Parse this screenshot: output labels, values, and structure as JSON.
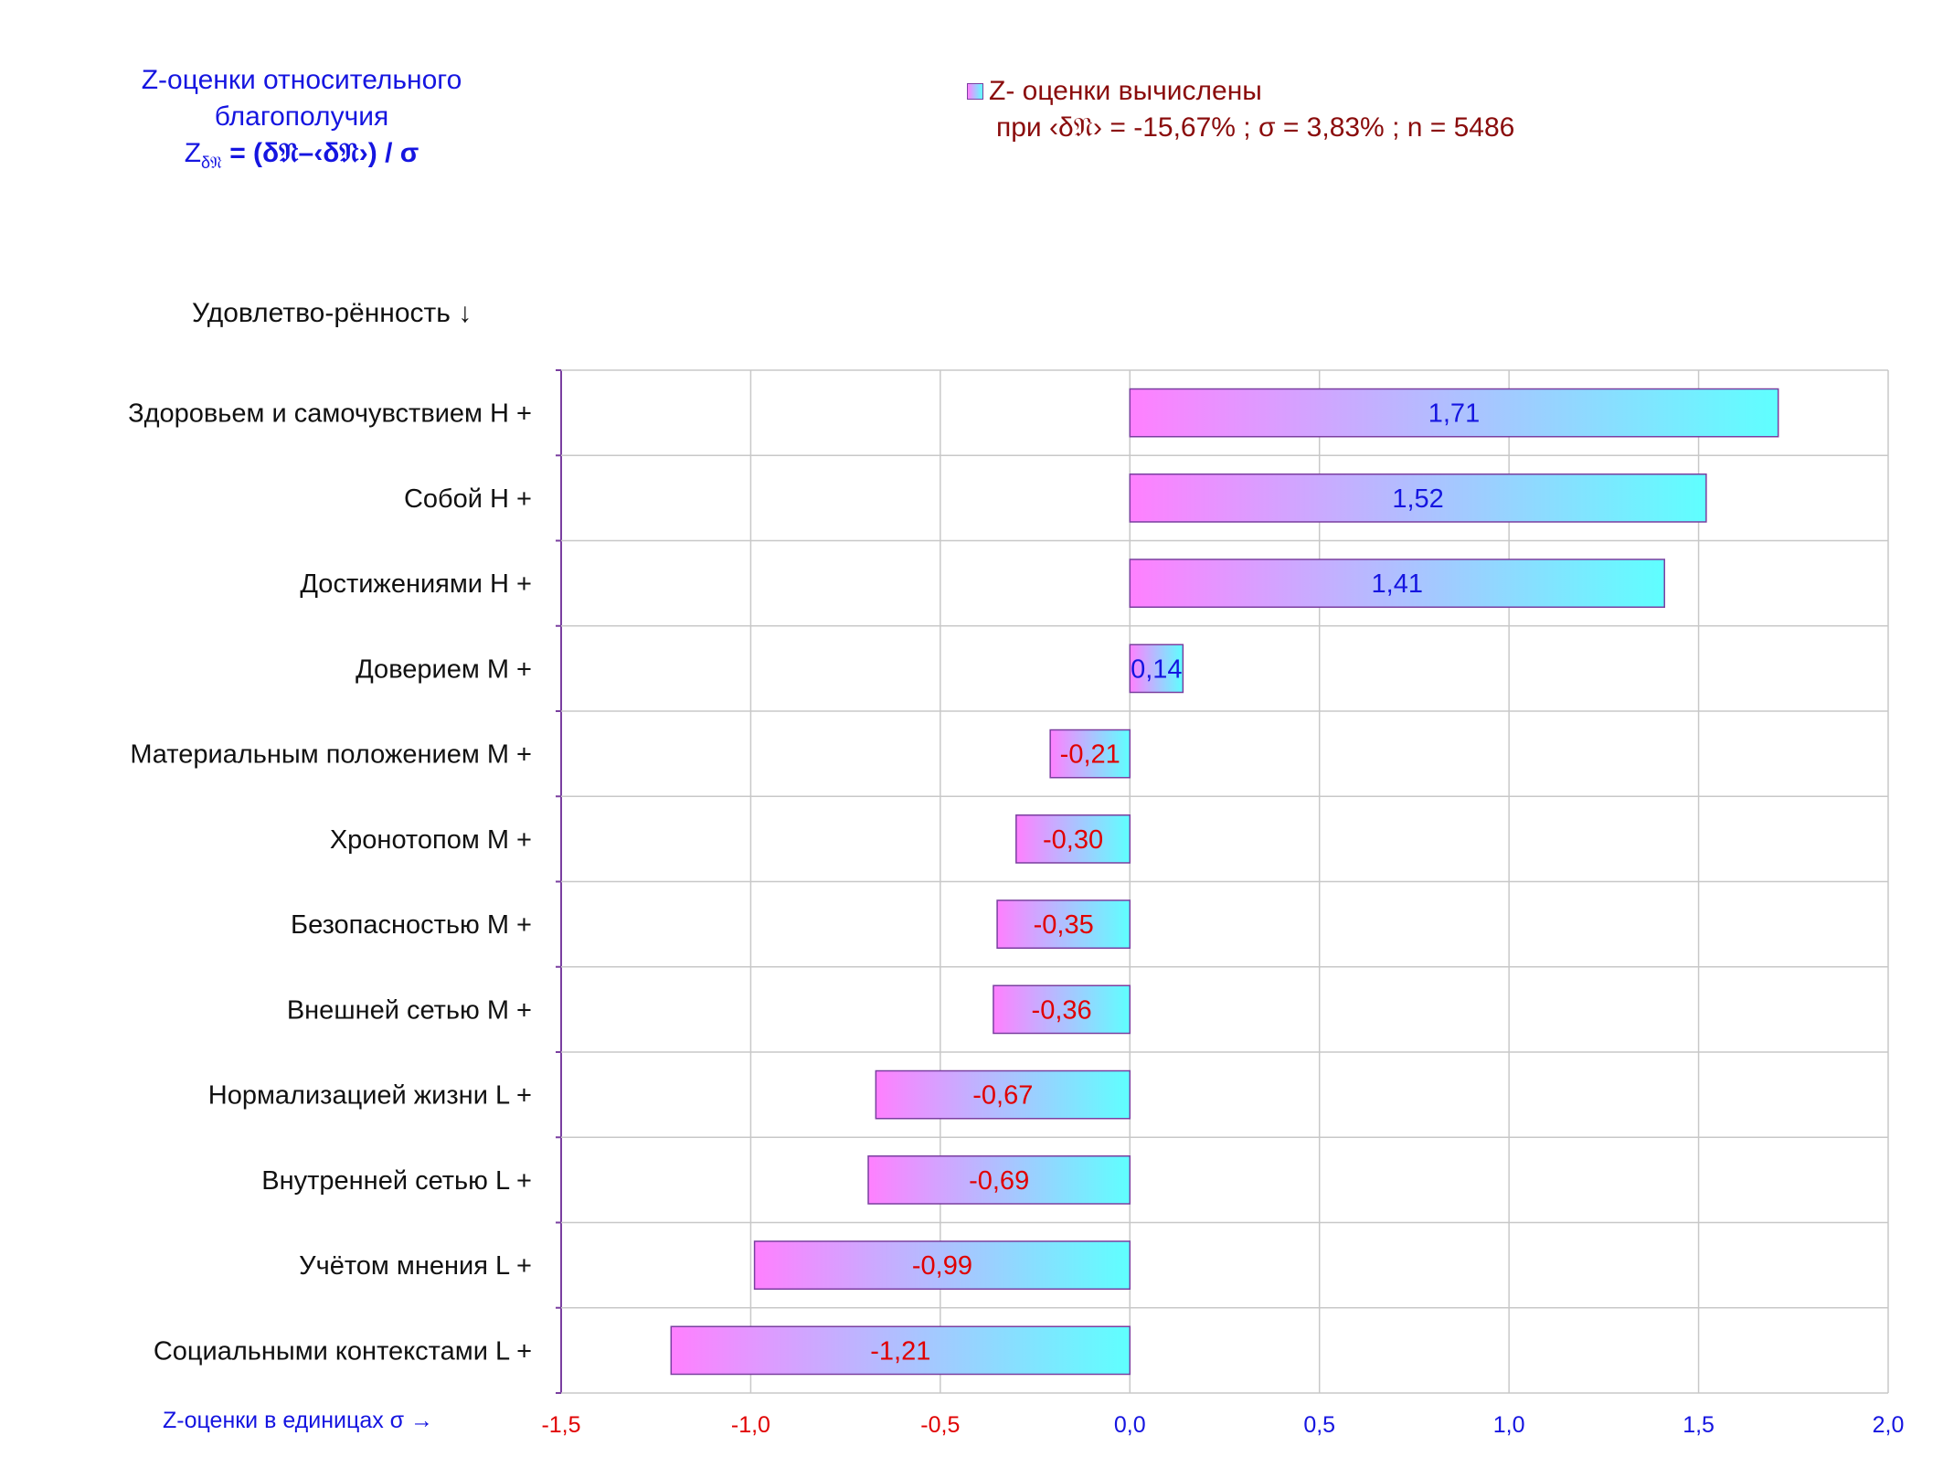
{
  "header": {
    "title_line1": "Z-оценки  относительного",
    "title_line2": "благополучия",
    "formula_main": "Z",
    "formula_sub": "δ𝔑",
    "formula_rest": " = (δ𝔑–‹δ𝔑›)  / σ"
  },
  "legend": {
    "line1": "Z- оценки вычислены",
    "line2": "при ‹δ𝔑›  = -15,67% ; σ = 3,83% ; n = 5486"
  },
  "axis_titles": {
    "y_top": "Удовлетво-рённость ↓",
    "x_bottom": "Z-оценки в единицах σ →"
  },
  "colors": {
    "bar_gradient_start": "#ff80ff",
    "bar_gradient_end": "#5fffff",
    "bar_border": "#7a3fa0",
    "positive_label": "#1515e0",
    "negative_label": "#e00000",
    "grid": "#c8c8c8",
    "axis": "#7a3fa0"
  },
  "chart_data": {
    "type": "bar",
    "orientation": "horizontal",
    "categories": [
      "Здоровьем и самочувствием  H +",
      "Собой  H +",
      "Достижениями  H +",
      "Доверием  M +",
      "Материальным положением  M +",
      "Хронотопом  M +",
      "Безопасностью  M +",
      "Внешней сетью  M +",
      "Нормализацией жизни  L +",
      "Внутренней сетью  L +",
      "Учётом мнения  L +",
      "Социальными контекстами  L +"
    ],
    "values": [
      1.71,
      1.52,
      1.41,
      0.14,
      -0.21,
      -0.3,
      -0.35,
      -0.36,
      -0.67,
      -0.69,
      -0.99,
      -1.21
    ],
    "value_labels": [
      "1,71",
      "1,52",
      "1,41",
      "0,14",
      "-0,21",
      "-0,30",
      "-0,35",
      "-0,36",
      "-0,67",
      "-0,69",
      "-0,99",
      "-1,21"
    ],
    "xlim": [
      -1.5,
      2.0
    ],
    "xticks": [
      -1.5,
      -1.0,
      -0.5,
      0.0,
      0.5,
      1.0,
      1.5,
      2.0
    ],
    "xtick_labels": [
      "-1,5",
      "-1,0",
      "-0,5",
      "0,0",
      "0,5",
      "1,0",
      "1,5",
      "2,0"
    ],
    "grid": true,
    "legend_position": "top-right"
  }
}
